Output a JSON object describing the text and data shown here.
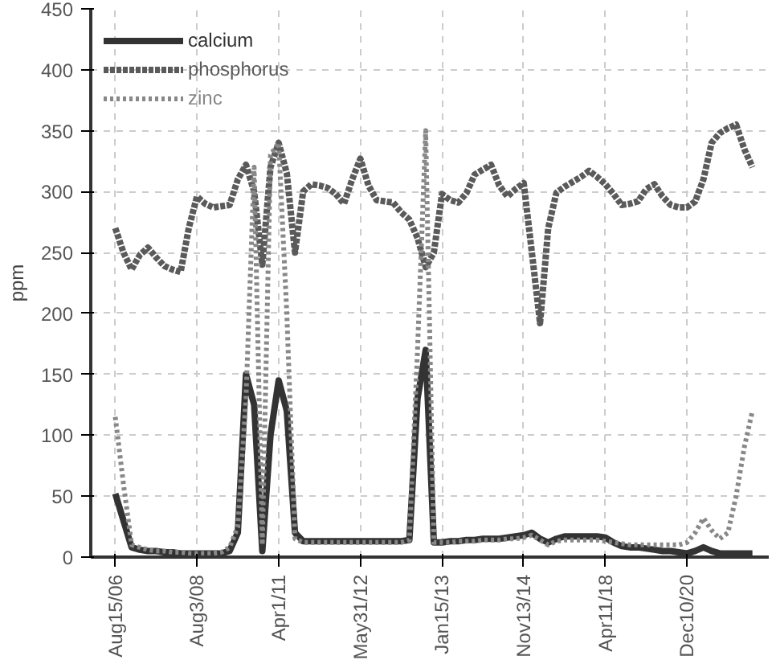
{
  "chart_data": {
    "type": "line",
    "ylabel": "ppm",
    "categories": [
      "Aug15/06",
      null,
      null,
      null,
      null,
      null,
      null,
      null,
      null,
      null,
      "Aug3/08",
      null,
      null,
      null,
      null,
      null,
      null,
      null,
      null,
      null,
      "Apr1/11",
      null,
      null,
      null,
      null,
      null,
      null,
      null,
      null,
      null,
      "May31/12",
      null,
      null,
      null,
      null,
      null,
      null,
      null,
      null,
      null,
      "Jan15/13",
      null,
      null,
      null,
      null,
      null,
      null,
      null,
      null,
      null,
      "Nov13/14",
      null,
      null,
      null,
      null,
      null,
      null,
      null,
      null,
      null,
      "Apr11/18",
      null,
      null,
      null,
      null,
      null,
      null,
      null,
      null,
      null,
      "Dec10/20",
      null,
      null,
      null,
      null,
      null,
      null,
      null,
      null
    ],
    "series": [
      {
        "name": "calcium",
        "color": "#333333",
        "line_style": "solid",
        "values": [
          52,
          30,
          8,
          6,
          5,
          5,
          4,
          4,
          3,
          3,
          3,
          3,
          3,
          3,
          5,
          20,
          150,
          125,
          5,
          100,
          145,
          120,
          20,
          13,
          13,
          13,
          13,
          13,
          13,
          13,
          13,
          13,
          13,
          13,
          13,
          13,
          14,
          130,
          170,
          12,
          12,
          13,
          13,
          14,
          14,
          15,
          15,
          15,
          16,
          17,
          18,
          20,
          15,
          12,
          15,
          17,
          17,
          17,
          17,
          17,
          16,
          12,
          9,
          8,
          8,
          7,
          6,
          5,
          5,
          4,
          3,
          5,
          8,
          5,
          3,
          3,
          3,
          3,
          3
        ]
      },
      {
        "name": "phosphorus",
        "color": "#5a5a5a",
        "line_style": "dashed",
        "values": [
          270,
          250,
          236,
          248,
          254,
          246,
          239,
          236,
          234,
          270,
          296,
          290,
          287,
          288,
          289,
          310,
          322,
          300,
          240,
          320,
          340,
          315,
          250,
          300,
          306,
          305,
          303,
          298,
          290,
          310,
          327,
          305,
          293,
          292,
          291,
          283,
          277,
          262,
          238,
          250,
          298,
          293,
          291,
          299,
          314,
          318,
          322,
          305,
          296,
          302,
          307,
          250,
          192,
          270,
          299,
          304,
          308,
          312,
          317,
          312,
          306,
          298,
          289,
          290,
          292,
          302,
          306,
          296,
          289,
          287,
          287,
          292,
          310,
          340,
          348,
          352,
          355,
          335,
          320
        ]
      },
      {
        "name": "zinc",
        "color": "#888888",
        "line_style": "dotted",
        "values": [
          115,
          60,
          10,
          8,
          6,
          5,
          5,
          4,
          4,
          3,
          3,
          3,
          3,
          4,
          8,
          25,
          130,
          320,
          10,
          330,
          340,
          200,
          15,
          12,
          12,
          12,
          12,
          12,
          12,
          12,
          12,
          12,
          12,
          12,
          12,
          12,
          14,
          170,
          350,
          12,
          12,
          12,
          13,
          13,
          13,
          14,
          14,
          14,
          15,
          15,
          16,
          18,
          14,
          10,
          13,
          14,
          14,
          14,
          14,
          14,
          13,
          12,
          11,
          10,
          10,
          10,
          10,
          10,
          10,
          10,
          12,
          20,
          32,
          22,
          15,
          20,
          50,
          90,
          120
        ]
      }
    ],
    "ylim": [
      0,
      450
    ],
    "yticks": [
      0,
      50,
      100,
      150,
      200,
      250,
      300,
      350,
      400,
      450
    ],
    "grid": true,
    "legend": "top left"
  }
}
